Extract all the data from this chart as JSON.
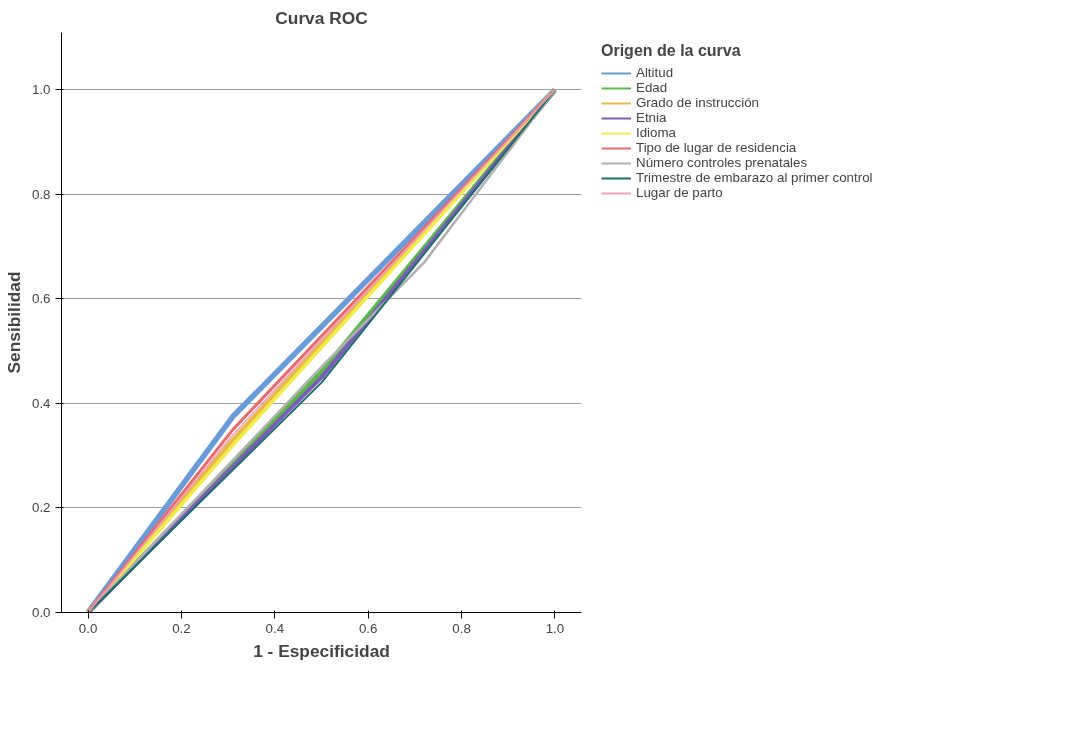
{
  "chart_data": {
    "type": "line",
    "title": "Curva ROC",
    "xlabel": "1 - Especificidad",
    "ylabel": "Sensibilidad",
    "legend_title": "Origen de la curva",
    "xlim": [
      -0.057,
      1.057
    ],
    "ylim": [
      0,
      1.11
    ],
    "xticks": [
      {
        "value": 0,
        "label": "0.0"
      },
      {
        "value": 0.2,
        "label": "0.2"
      },
      {
        "value": 0.4,
        "label": "0.4"
      },
      {
        "value": 0.6,
        "label": "0.6"
      },
      {
        "value": 0.8,
        "label": "0.8"
      },
      {
        "value": 1,
        "label": "1.0"
      }
    ],
    "yticks": [
      {
        "value": 0,
        "label": "0.0"
      },
      {
        "value": 0.2,
        "label": "0.2"
      },
      {
        "value": 0.4,
        "label": "0.4"
      },
      {
        "value": 0.6,
        "label": "0.6"
      },
      {
        "value": 0.8,
        "label": "0.8"
      },
      {
        "value": 1,
        "label": "1.0"
      }
    ],
    "grid": "y",
    "legend": "right",
    "marker": "none",
    "line_style": "solid",
    "series": [
      {
        "name": "Altitud",
        "color": "#6a9ad8",
        "x": [
          0,
          0.31,
          1
        ],
        "values": [
          0,
          0.375,
          1
        ]
      },
      {
        "name": "Edad",
        "color": "#5cb84a",
        "x": [
          0,
          0.5,
          1
        ],
        "values": [
          0,
          0.46,
          1
        ]
      },
      {
        "name": "Grado de instrucción",
        "color": "#e8b84a",
        "x": [
          0,
          0.31,
          1
        ],
        "values": [
          0,
          0.33,
          1
        ]
      },
      {
        "name": "Etnia",
        "color": "#7b5cb8",
        "x": [
          0,
          0.5,
          1
        ],
        "values": [
          0,
          0.45,
          1
        ]
      },
      {
        "name": "Idioma",
        "color": "#f2ec4a",
        "x": [
          0,
          0.31,
          1
        ],
        "values": [
          0,
          0.32,
          1
        ]
      },
      {
        "name": "Tipo de lugar de residencia",
        "color": "#e86a6a",
        "x": [
          0,
          0.31,
          1
        ],
        "values": [
          0,
          0.35,
          1
        ]
      },
      {
        "name": "Número controles prenatales",
        "color": "#b0b0b0",
        "x": [
          0,
          0.5,
          0.72,
          1
        ],
        "values": [
          0,
          0.47,
          0.67,
          1
        ]
      },
      {
        "name": "Trimestre de embarazo al primer control",
        "color": "#1e6e6a",
        "x": [
          0,
          0.5,
          1
        ],
        "values": [
          0,
          0.44,
          1
        ]
      },
      {
        "name": "Lugar de parto",
        "color": "#eea0c0",
        "x": [
          0,
          0.31,
          1
        ],
        "values": [
          0,
          0.34,
          1
        ]
      }
    ]
  }
}
